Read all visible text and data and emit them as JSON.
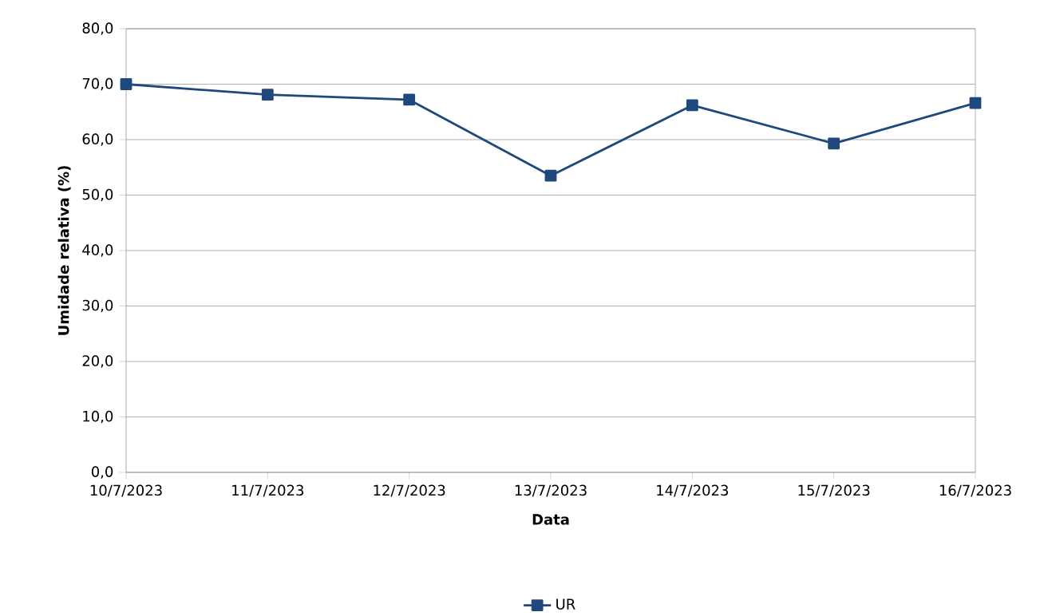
{
  "chart_data": {
    "type": "line",
    "xlabel": "Data",
    "ylabel": "Umidade relativa (%)",
    "categories": [
      "10/7/2023",
      "11/7/2023",
      "12/7/2023",
      "13/7/2023",
      "14/7/2023",
      "15/7/2023",
      "16/7/2023"
    ],
    "series": [
      {
        "name": "UR",
        "color": "#1f497d",
        "values": [
          70.0,
          68.1,
          67.2,
          53.5,
          66.2,
          59.3,
          66.6
        ]
      }
    ],
    "ylim": [
      0,
      80
    ],
    "yticks": [
      {
        "value": 0,
        "label": "0,0"
      },
      {
        "value": 10,
        "label": "10,0"
      },
      {
        "value": 20,
        "label": "20,0"
      },
      {
        "value": 30,
        "label": "30,0"
      },
      {
        "value": 40,
        "label": "40,0"
      },
      {
        "value": 50,
        "label": "50,0"
      },
      {
        "value": 60,
        "label": "60,0"
      },
      {
        "value": 70,
        "label": "70,0"
      },
      {
        "value": 80,
        "label": "80,0"
      }
    ],
    "grid": "y",
    "legend": "bottom",
    "marker": "square",
    "line_style": "solid"
  }
}
